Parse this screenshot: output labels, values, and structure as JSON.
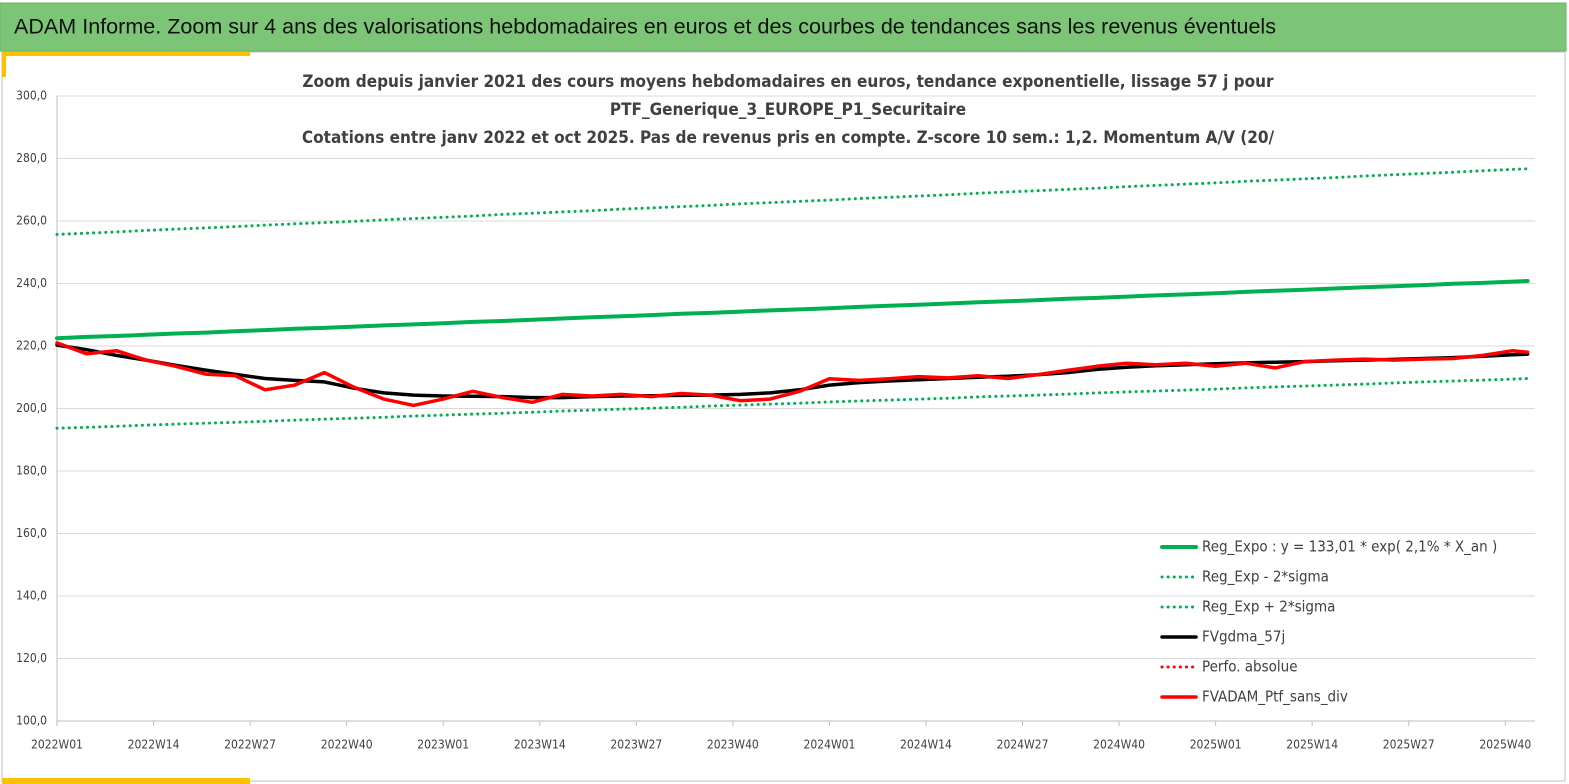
{
  "header": "ADAM Informe. Zoom sur 4 ans des valorisations hebdomadaires en euros et des courbes de tendances sans les revenus éventuels",
  "chart_data": {
    "type": "line",
    "title": [
      "Zoom depuis janvier 2021 des cours moyens hebdomadaires  en euros, tendance exponentielle, lissage 57 j pour",
      "PTF_Generique_3_EUROPE_P1_Securitaire",
      "Cotations entre janv 2022 et oct 2025. Pas de revenus pris en compte. Z-score 10 sem.: 1,2. Momentum A/V (20/"
    ],
    "x": [
      0,
      4,
      8,
      12,
      16,
      20,
      24,
      28,
      32,
      36,
      40,
      44,
      48,
      52,
      56,
      60,
      64,
      68,
      72,
      76,
      80,
      84,
      88,
      92,
      96,
      100,
      104,
      108,
      112,
      116,
      120,
      124,
      128,
      132,
      136,
      140,
      144,
      148,
      152,
      156,
      160,
      164,
      168,
      172,
      176,
      180,
      184,
      188,
      192,
      196,
      198
    ],
    "xlim": [
      0,
      199
    ],
    "xticks": [
      {
        "value": 0,
        "label": "2022W01"
      },
      {
        "value": 13,
        "label": "2022W14"
      },
      {
        "value": 26,
        "label": "2022W27"
      },
      {
        "value": 39,
        "label": "2022W40"
      },
      {
        "value": 52,
        "label": "2023W01"
      },
      {
        "value": 65,
        "label": "2023W14"
      },
      {
        "value": 78,
        "label": "2023W27"
      },
      {
        "value": 91,
        "label": "2023W40"
      },
      {
        "value": 104,
        "label": "2024W01"
      },
      {
        "value": 117,
        "label": "2024W14"
      },
      {
        "value": 130,
        "label": "2024W27"
      },
      {
        "value": 143,
        "label": "2024W40"
      },
      {
        "value": 156,
        "label": "2025W01"
      },
      {
        "value": 169,
        "label": "2025W14"
      },
      {
        "value": 182,
        "label": "2025W27"
      },
      {
        "value": 195,
        "label": "2025W40"
      }
    ],
    "ylim": [
      100,
      300
    ],
    "yticks": [
      {
        "value": 100,
        "label": "100,0"
      },
      {
        "value": 120,
        "label": "120,0"
      },
      {
        "value": 140,
        "label": "140,0"
      },
      {
        "value": 160,
        "label": "160,0"
      },
      {
        "value": 180,
        "label": "180,0"
      },
      {
        "value": 200,
        "label": "200,0"
      },
      {
        "value": 220,
        "label": "220,0"
      },
      {
        "value": 240,
        "label": "240,0"
      },
      {
        "value": 260,
        "label": "260,0"
      },
      {
        "value": 280,
        "label": "280,0"
      },
      {
        "value": 300,
        "label": "300,0"
      }
    ],
    "grid": true,
    "series": [
      {
        "name": "Reg_Expo : y = 133,01 * exp( 2,1% *  X_an )",
        "color": "#00b050",
        "style": "solid",
        "values": [
          222.5,
          222.9,
          223.2,
          223.6,
          224.0,
          224.3,
          224.7,
          225.1,
          225.5,
          225.8,
          226.2,
          226.6,
          226.9,
          227.3,
          227.7,
          228.0,
          228.4,
          228.8,
          229.2,
          229.5,
          229.9,
          230.3,
          230.6,
          231.0,
          231.4,
          231.7,
          232.1,
          232.5,
          232.9,
          233.2,
          233.6,
          234.0,
          234.3,
          234.7,
          235.1,
          235.4,
          235.8,
          236.2,
          236.5,
          236.9,
          237.3,
          237.7,
          238.0,
          238.4,
          238.8,
          239.1,
          239.5,
          239.9,
          240.2,
          240.6,
          240.8
        ]
      },
      {
        "name": "Reg_Exp - 2*sigma",
        "color": "#00b050",
        "style": "dotted",
        "values": [
          193.7,
          194.0,
          194.3,
          194.7,
          195.0,
          195.3,
          195.6,
          195.9,
          196.3,
          196.6,
          196.9,
          197.2,
          197.6,
          197.9,
          198.2,
          198.5,
          198.8,
          199.2,
          199.5,
          199.8,
          200.1,
          200.4,
          200.8,
          201.1,
          201.4,
          201.7,
          202.1,
          202.4,
          202.7,
          203.0,
          203.3,
          203.7,
          204.0,
          204.3,
          204.6,
          205.0,
          205.3,
          205.6,
          205.9,
          206.2,
          206.6,
          206.9,
          207.2,
          207.5,
          207.8,
          208.2,
          208.5,
          208.8,
          209.1,
          209.4,
          209.6
        ]
      },
      {
        "name": "Reg_Exp + 2*sigma",
        "color": "#00b050",
        "style": "dotted",
        "values": [
          255.7,
          256.1,
          256.5,
          257.0,
          257.4,
          257.8,
          258.2,
          258.7,
          259.1,
          259.5,
          259.9,
          260.4,
          260.8,
          261.2,
          261.6,
          262.1,
          262.5,
          262.9,
          263.3,
          263.8,
          264.2,
          264.6,
          265.0,
          265.5,
          265.9,
          266.3,
          266.7,
          267.2,
          267.6,
          268.0,
          268.4,
          268.9,
          269.3,
          269.7,
          270.1,
          270.5,
          271.0,
          271.4,
          271.8,
          272.2,
          272.7,
          273.1,
          273.5,
          273.9,
          274.4,
          274.8,
          275.2,
          275.6,
          276.1,
          276.5,
          276.7
        ]
      },
      {
        "name": "FVgdma_57j",
        "color": "#000000",
        "style": "solid",
        "values": [
          220.3,
          218.8,
          217.0,
          215.5,
          213.8,
          212.3,
          210.9,
          209.6,
          209.0,
          208.5,
          206.5,
          205.0,
          204.3,
          204.0,
          203.9,
          203.8,
          203.5,
          203.5,
          203.8,
          204.0,
          204.1,
          204.2,
          204.3,
          204.5,
          205.0,
          206.0,
          207.5,
          208.3,
          208.8,
          209.2,
          209.6,
          210.0,
          210.3,
          210.8,
          211.5,
          212.5,
          213.2,
          213.7,
          214.0,
          214.3,
          214.6,
          214.8,
          215.0,
          215.3,
          215.5,
          215.7,
          216.0,
          216.3,
          216.7,
          217.2,
          217.4
        ]
      },
      {
        "name": "Perfo. absolue",
        "color": "#ff0000",
        "style": "dotted",
        "values": [
          null,
          null,
          null,
          null,
          null,
          null,
          null,
          null,
          null,
          null,
          null,
          null,
          null,
          null,
          null,
          null,
          null,
          null,
          null,
          null,
          null,
          null,
          null,
          null,
          null,
          null,
          null,
          null,
          null,
          null,
          null,
          null,
          null,
          null,
          null,
          null,
          null,
          null,
          null,
          null,
          null,
          null,
          null,
          null,
          null,
          null,
          null,
          null,
          null,
          null,
          null
        ]
      },
      {
        "name": "FVADAM_Ptf_sans_div",
        "color": "#ff0000",
        "style": "solid",
        "values": [
          221.0,
          217.5,
          218.5,
          215.5,
          213.5,
          211.0,
          210.5,
          206.0,
          207.5,
          211.5,
          206.8,
          203.0,
          201.0,
          203.0,
          205.5,
          203.5,
          202.0,
          204.5,
          204.0,
          204.5,
          203.8,
          204.8,
          204.3,
          202.5,
          203.0,
          205.5,
          209.5,
          209.0,
          209.5,
          210.2,
          209.8,
          210.5,
          209.6,
          210.8,
          212.2,
          213.5,
          214.5,
          214.0,
          214.5,
          213.5,
          214.5,
          213.0,
          215.0,
          215.5,
          215.8,
          215.5,
          215.8,
          216.0,
          217.0,
          218.5,
          218.0
        ]
      }
    ]
  }
}
